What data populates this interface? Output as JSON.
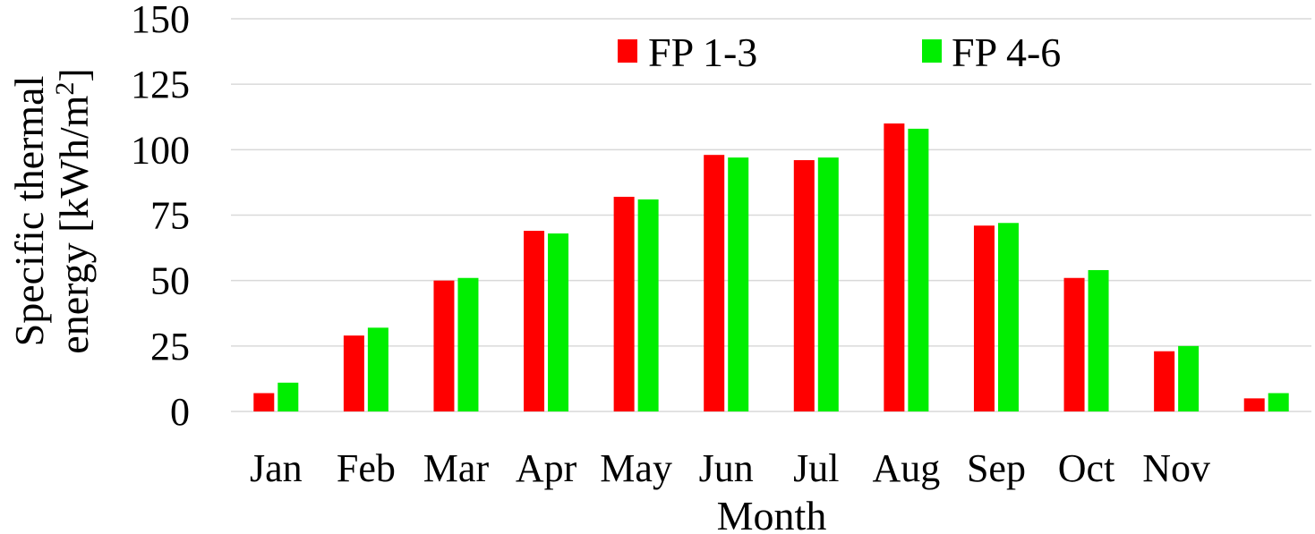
{
  "chart_data": {
    "type": "bar",
    "title": "",
    "xlabel": "Month",
    "ylabel_line1": "Specific thermal",
    "ylabel_line2": "energy [kWh/m",
    "ylabel_superscript": "2",
    "ylabel_close": "]",
    "ylim": [
      0,
      150
    ],
    "yticks": [
      0,
      25,
      50,
      75,
      100,
      125,
      150
    ],
    "grid": true,
    "legend_position": "top",
    "categories": [
      "Jan",
      "Feb",
      "Mar",
      "Apr",
      "May",
      "Jun",
      "Jul",
      "Aug",
      "Sep",
      "Oct",
      "Nov",
      ""
    ],
    "series": [
      {
        "name": "FP 1-3",
        "color": "#ff0000",
        "values": [
          7,
          29,
          50,
          69,
          82,
          98,
          96,
          110,
          71,
          51,
          23,
          5
        ]
      },
      {
        "name": "FP 4-6",
        "color": "#00ee00",
        "values": [
          11,
          32,
          51,
          68,
          81,
          97,
          97,
          108,
          72,
          54,
          25,
          7
        ]
      }
    ]
  }
}
